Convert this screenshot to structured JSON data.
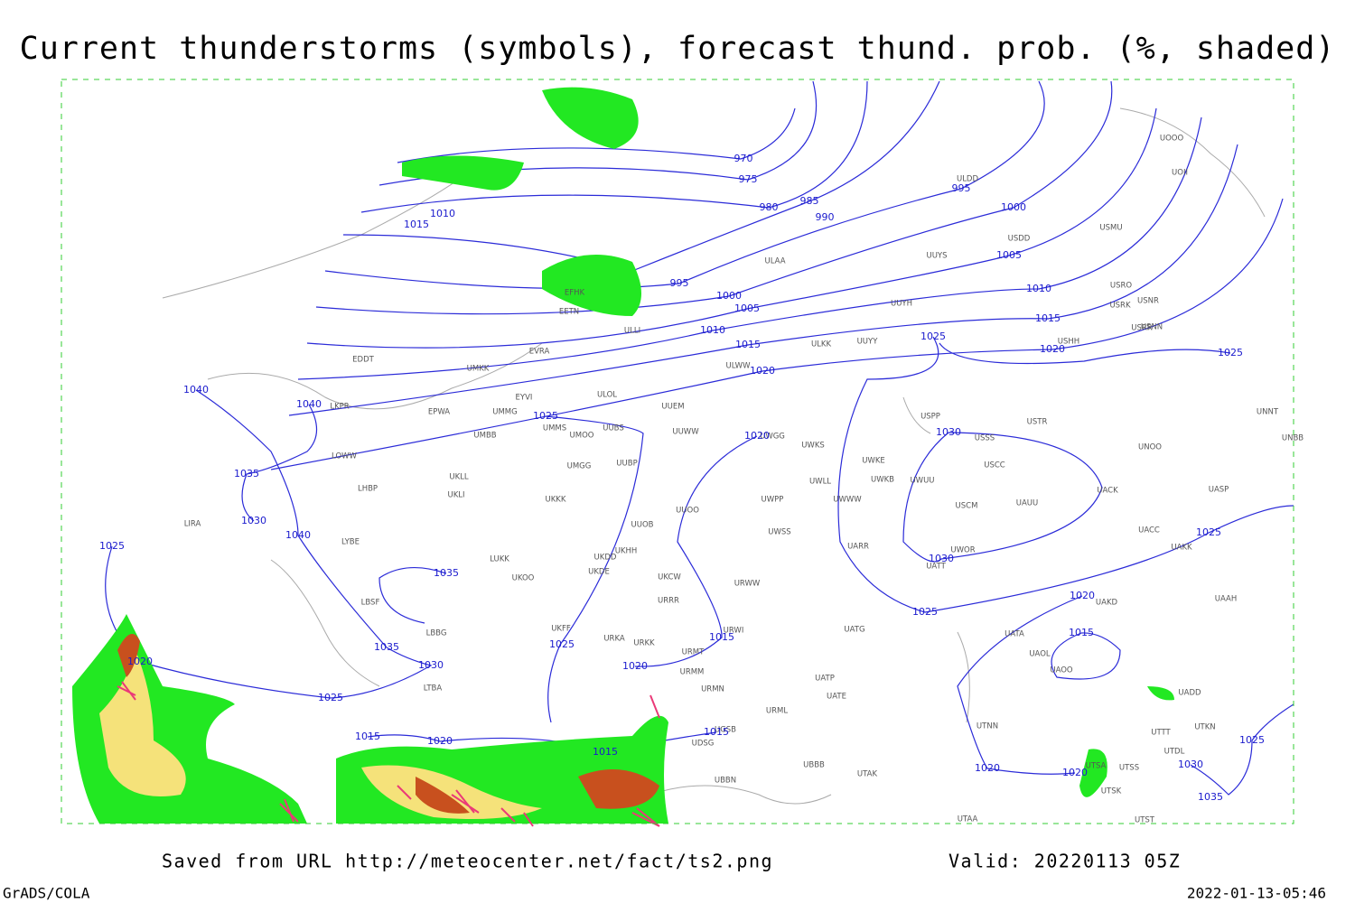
{
  "header": {
    "title": "Current thunderstorms (symbols), forecast thund. prob. (%, shaded)"
  },
  "isobar_labels": [
    970,
    975,
    980,
    985,
    990,
    995,
    1000,
    1005,
    1010,
    1015,
    1020,
    1025,
    1025,
    995,
    1000,
    1005,
    1010,
    1015,
    1020,
    1015,
    1010,
    1040,
    1040,
    1035,
    1030,
    1040,
    1025,
    1035,
    1025,
    1020,
    1030,
    1030,
    1025,
    1020,
    1015,
    1025,
    1035,
    1030,
    1025,
    1020,
    1025,
    1015,
    1020,
    1015,
    1020,
    1015,
    1015,
    1020,
    1020,
    1030,
    1025,
    1035
  ],
  "station_codes": [
    "ULDD",
    "UUYS",
    "ULAA",
    "USDD",
    "USMU",
    "UOII",
    "UOOO",
    "UUYH",
    "ULKK",
    "UUYY",
    "ULWW",
    "UUEM",
    "ULOL",
    "EYVI",
    "EVRA",
    "UMKK",
    "EDDT",
    "EPWA",
    "UMMG",
    "UMMS",
    "UMOO",
    "UUBS",
    "UMBB",
    "UUWW",
    "UWGG",
    "UWKS",
    "UWKE",
    "UWKB",
    "UWUU",
    "UWLL",
    "UWWW",
    "USPP",
    "USTR",
    "USSS",
    "USCC",
    "USCM",
    "UAUU",
    "UNOO",
    "UNBB",
    "UNNT",
    "UACK",
    "UASP",
    "UACC",
    "UAKK",
    "UARR",
    "UATT",
    "UWOR",
    "UUBP",
    "UMGG",
    "UKLL",
    "UKLI",
    "LOWW",
    "LKPR",
    "LHBP",
    "LIRA",
    "LYBE",
    "UKKK",
    "UUOB",
    "UUOO",
    "UWPP",
    "UWSS",
    "UKHH",
    "UKDD",
    "UKDE",
    "UKOO",
    "LUKK",
    "UKCW",
    "URRR",
    "URWW",
    "URWI",
    "URMT",
    "URMM",
    "URMN",
    "URML",
    "UATG",
    "UATP",
    "UATE",
    "UATA",
    "UAOL",
    "UAOO",
    "UADD",
    "UAAH",
    "UAKD",
    "UTNN",
    "UTTT",
    "UTKN",
    "UTDL",
    "UTSA",
    "UTSS",
    "UTSK",
    "UTST",
    "UTAA",
    "UTAK",
    "UBBB",
    "UBBN",
    "UGSB",
    "UDSG",
    "URKA",
    "URKK",
    "UKFF",
    "LBSF",
    "LBBG",
    "LTBA",
    "EFHK",
    "EETN",
    "ULLI",
    "USRK",
    "USRR",
    "USNN",
    "USHH",
    "USNR",
    "USRO"
  ],
  "footer": {
    "source": "Saved from URL http://meteocenter.net/fact/ts2.png",
    "valid": "Valid: 20220113 05Z",
    "software": "GrADS/COLA",
    "timestamp": "2022-01-13-05:46"
  }
}
